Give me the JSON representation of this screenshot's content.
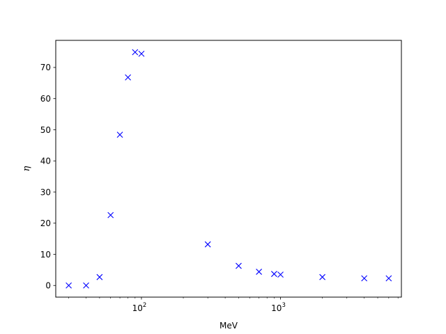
{
  "chart_data": {
    "type": "scatter",
    "xlabel": "MeV",
    "ylabel": "η",
    "xscale": "log",
    "xlim": [
      24.2,
      7400
    ],
    "ylim": [
      -3.74,
      78.7
    ],
    "grid": false,
    "marker": "x",
    "color": "#0000ff",
    "x_major_ticks": [
      100,
      1000
    ],
    "x_major_tick_labels": [
      {
        "base": "10",
        "exp": "2"
      },
      {
        "base": "10",
        "exp": "3"
      }
    ],
    "x_minor_ticks": [
      30,
      40,
      50,
      60,
      70,
      80,
      90,
      200,
      300,
      400,
      500,
      600,
      700,
      800,
      900,
      2000,
      3000,
      4000,
      5000,
      6000,
      7000
    ],
    "y_ticks": [
      0,
      10,
      20,
      30,
      40,
      50,
      60,
      70
    ],
    "y_tick_labels": [
      "0",
      "10",
      "20",
      "30",
      "40",
      "50",
      "60",
      "70"
    ],
    "points": [
      {
        "x": 30,
        "y": 0.0
      },
      {
        "x": 40,
        "y": 0.0
      },
      {
        "x": 50,
        "y": 2.7
      },
      {
        "x": 60,
        "y": 22.6
      },
      {
        "x": 70,
        "y": 48.4
      },
      {
        "x": 80,
        "y": 66.8
      },
      {
        "x": 90,
        "y": 74.9
      },
      {
        "x": 100,
        "y": 74.4
      },
      {
        "x": 300,
        "y": 13.2
      },
      {
        "x": 500,
        "y": 6.3
      },
      {
        "x": 700,
        "y": 4.4
      },
      {
        "x": 900,
        "y": 3.7
      },
      {
        "x": 1000,
        "y": 3.5
      },
      {
        "x": 2000,
        "y": 2.7
      },
      {
        "x": 4000,
        "y": 2.3
      },
      {
        "x": 6000,
        "y": 2.3
      }
    ]
  }
}
